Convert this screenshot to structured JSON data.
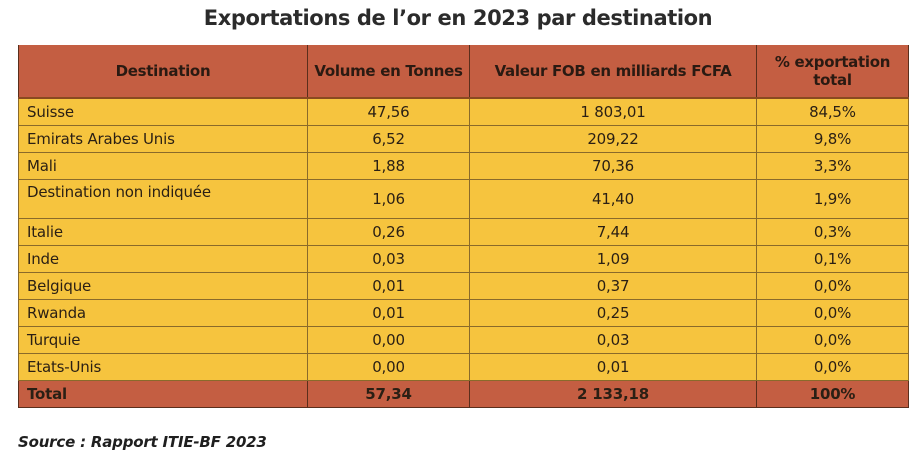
{
  "title": "Exportations de l’or en 2023 par destination",
  "colors": {
    "header_bg": "#c45e42",
    "row_bg": "#f6c43e",
    "total_bg": "#c45e42"
  },
  "table": {
    "headers": [
      "Destination",
      "Volume en Tonnes",
      "Valeur FOB en milliards FCFA",
      "% exportation total"
    ],
    "rows": [
      {
        "destination": "Suisse",
        "volume": "47,56",
        "valeur": "1 803,01",
        "pct": "84,5%"
      },
      {
        "destination": "Emirats Arabes Unis",
        "volume": "6,52",
        "valeur": "209,22",
        "pct": "9,8%"
      },
      {
        "destination": "Mali",
        "volume": "1,88",
        "valeur": "70,36",
        "pct": "3,3%"
      },
      {
        "destination": "Destination non indiquée",
        "volume": "1,06",
        "valeur": "41,40",
        "pct": "1,9%"
      },
      {
        "destination": "Italie",
        "volume": "0,26",
        "valeur": "7,44",
        "pct": "0,3%"
      },
      {
        "destination": "Inde",
        "volume": "0,03",
        "valeur": "1,09",
        "pct": "0,1%"
      },
      {
        "destination": "Belgique",
        "volume": "0,01",
        "valeur": "0,37",
        "pct": "0,0%"
      },
      {
        "destination": "Rwanda",
        "volume": "0,01",
        "valeur": "0,25",
        "pct": "0,0%"
      },
      {
        "destination": "Turquie",
        "volume": "0,00",
        "valeur": "0,03",
        "pct": "0,0%"
      },
      {
        "destination": "Etats-Unis",
        "volume": "0,00",
        "valeur": "0,01",
        "pct": "0,0%"
      }
    ],
    "total": {
      "label": "Total",
      "volume": "57,34",
      "valeur": "2 133,18",
      "pct": "100%"
    }
  },
  "source": "Source : Rapport ITIE-BF 2023"
}
